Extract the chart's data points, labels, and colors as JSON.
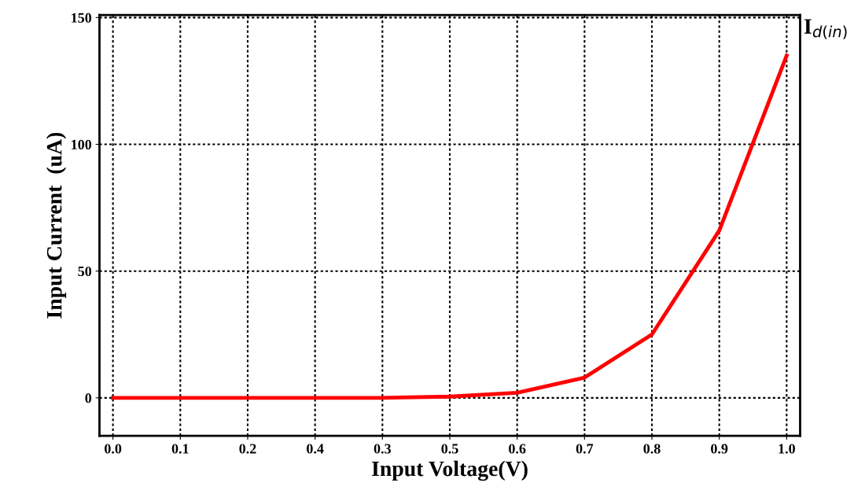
{
  "chart_data": {
    "type": "line",
    "xlabel": "Input Voltage(V)",
    "ylabel": "Input Current  (uA)",
    "categories": [
      "0.0",
      "0.1",
      "0.2",
      "0.4",
      "0.3",
      "0.5",
      "0.6",
      "0.7",
      "0.8",
      "0.9",
      "1.0"
    ],
    "series": [
      {
        "color": "#ff0000",
        "values": [
          0,
          0,
          0,
          0,
          0,
          0.5,
          2,
          8,
          25,
          66,
          135
        ]
      }
    ],
    "ylim": [
      -15,
      151
    ],
    "yticks": [
      0,
      50,
      100,
      150
    ],
    "grid": true,
    "line_style": "solid",
    "marker": "none",
    "annotations": [
      "I$_{d(in)}$"
    ]
  }
}
